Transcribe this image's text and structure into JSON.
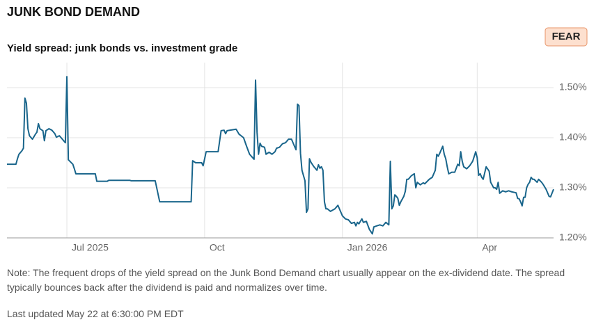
{
  "chart_data": {
    "type": "line",
    "title": "JUNK BOND DEMAND",
    "badge": "FEAR",
    "subtitle": "Yield spread: junk bonds vs. investment grade",
    "color": "#19658b",
    "grid": true,
    "xlim": [
      0,
      365
    ],
    "xticks": [
      {
        "value": 40,
        "label": "Jul 2025"
      },
      {
        "value": 132,
        "label": "Oct"
      },
      {
        "value": 224,
        "label": "Jan 2026"
      },
      {
        "value": 314,
        "label": "Apr"
      }
    ],
    "ylim": [
      1.2,
      1.55
    ],
    "yticks": [
      {
        "value": 1.2,
        "label": "1.20%"
      },
      {
        "value": 1.3,
        "label": "1.30%"
      },
      {
        "value": 1.4,
        "label": "1.40%"
      },
      {
        "value": 1.5,
        "label": "1.50%"
      }
    ],
    "x": [
      0,
      6,
      7,
      8,
      10,
      11,
      12,
      13,
      14,
      15,
      17,
      19,
      20,
      21,
      22,
      24,
      25,
      26,
      28,
      30,
      32,
      33,
      35,
      37,
      39,
      40,
      41,
      44,
      45,
      46,
      59,
      60,
      67,
      68,
      82,
      83,
      99,
      102,
      123,
      124,
      126,
      130,
      131,
      133,
      141,
      143,
      145,
      146,
      147,
      153,
      155,
      158,
      160,
      162,
      165,
      166,
      167,
      168,
      169,
      170,
      172,
      173,
      175,
      177,
      179,
      180,
      182,
      184,
      186,
      188,
      190,
      192,
      193,
      194,
      195,
      196,
      197,
      199,
      200,
      201,
      202,
      203,
      205,
      207,
      208,
      209,
      210,
      211,
      212,
      213,
      214,
      216,
      219,
      221,
      222,
      224,
      226,
      228,
      230,
      232,
      233,
      234,
      235,
      237,
      238,
      240,
      242,
      244,
      245,
      247,
      249,
      251,
      253,
      255,
      256,
      257,
      258,
      259,
      260,
      261,
      262,
      263,
      265,
      266,
      267,
      268,
      270,
      272,
      273,
      274,
      276,
      278,
      279,
      282,
      284,
      286,
      287,
      288,
      289,
      291,
      292,
      293,
      294,
      295,
      297,
      299,
      300,
      301,
      302,
      303,
      304,
      305,
      307,
      309,
      311,
      313,
      314,
      315,
      316,
      317,
      318,
      320,
      322,
      323,
      325,
      326,
      327,
      328,
      329,
      331,
      333,
      335,
      337,
      340,
      341,
      342,
      343,
      344,
      345,
      346,
      347,
      348,
      349,
      350,
      351,
      352,
      354,
      355,
      357,
      358,
      360,
      362,
      363,
      365
    ],
    "values": [
      1.347,
      1.347,
      1.358,
      1.367,
      1.374,
      1.379,
      1.479,
      1.469,
      1.418,
      1.404,
      1.397,
      1.407,
      1.411,
      1.428,
      1.418,
      1.414,
      1.394,
      1.414,
      1.418,
      1.415,
      1.408,
      1.401,
      1.404,
      1.397,
      1.39,
      1.522,
      1.356,
      1.347,
      1.338,
      1.328,
      1.328,
      1.313,
      1.313,
      1.315,
      1.315,
      1.314,
      1.314,
      1.272,
      1.272,
      1.354,
      1.35,
      1.35,
      1.344,
      1.372,
      1.372,
      1.414,
      1.415,
      1.408,
      1.414,
      1.417,
      1.407,
      1.4,
      1.383,
      1.367,
      1.357,
      1.515,
      1.411,
      1.367,
      1.389,
      1.383,
      1.381,
      1.367,
      1.371,
      1.367,
      1.372,
      1.379,
      1.381,
      1.388,
      1.39,
      1.397,
      1.397,
      1.383,
      1.376,
      1.467,
      1.464,
      1.369,
      1.335,
      1.314,
      1.251,
      1.258,
      1.358,
      1.351,
      1.342,
      1.335,
      1.346,
      1.339,
      1.342,
      1.335,
      1.272,
      1.258,
      1.258,
      1.253,
      1.258,
      1.265,
      1.258,
      1.244,
      1.238,
      1.236,
      1.229,
      1.231,
      1.224,
      1.231,
      1.228,
      1.238,
      1.231,
      1.233,
      1.217,
      1.208,
      1.222,
      1.224,
      1.226,
      1.224,
      1.231,
      1.226,
      1.353,
      1.258,
      1.264,
      1.286,
      1.283,
      1.279,
      1.265,
      1.272,
      1.283,
      1.293,
      1.317,
      1.317,
      1.324,
      1.328,
      1.3,
      1.311,
      1.306,
      1.31,
      1.308,
      1.317,
      1.321,
      1.335,
      1.367,
      1.363,
      1.369,
      1.383,
      1.367,
      1.358,
      1.342,
      1.328,
      1.331,
      1.331,
      1.339,
      1.347,
      1.344,
      1.372,
      1.353,
      1.342,
      1.338,
      1.344,
      1.353,
      1.372,
      1.36,
      1.325,
      1.328,
      1.321,
      1.317,
      1.342,
      1.333,
      1.311,
      1.3,
      1.3,
      1.297,
      1.311,
      1.289,
      1.294,
      1.292,
      1.294,
      1.292,
      1.29,
      1.279,
      1.278,
      1.272,
      1.264,
      1.281,
      1.281,
      1.3,
      1.307,
      1.311,
      1.321,
      1.317,
      1.317,
      1.311,
      1.317,
      1.311,
      1.307,
      1.297,
      1.283,
      1.282,
      1.297
    ],
    "note": "Note: The frequent drops of the yield spread on the Junk Bond Demand chart usually appear on the ex-dividend date. The spread typically bounces back after the dividend is paid and normalizes over time.",
    "last_updated": "Last updated May 22 at 6:30:00 PM EDT"
  }
}
